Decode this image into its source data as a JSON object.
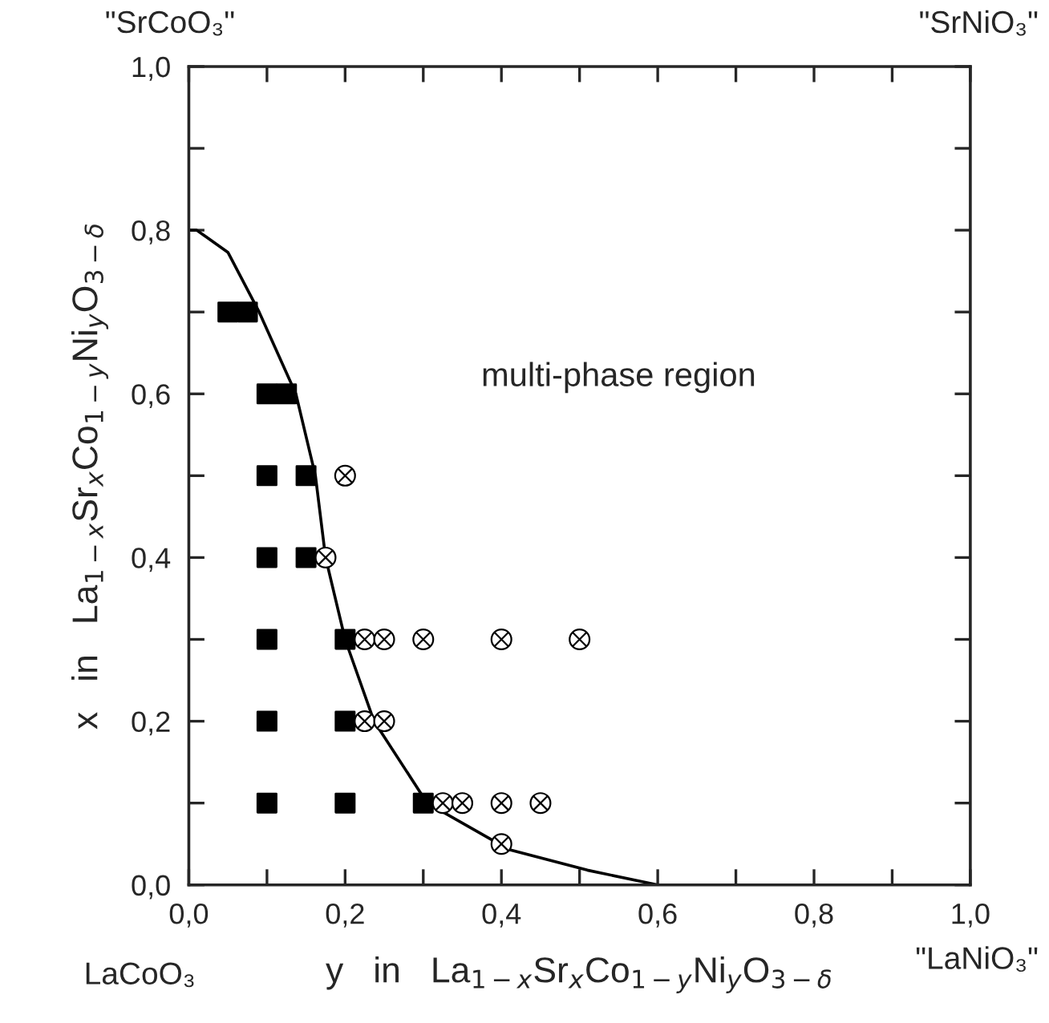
{
  "chart_data": {
    "type": "scatter",
    "xlabel": "y   in   La$_{1−x}$Sr$_{x}$Co$_{1−y}$Ni$_{y}$O$_{3−δ}$",
    "ylabel": "x   in   La$_{1−x}$Sr$_{x}$Co$_{1−y}$Ni$_{y}$O$_{3−δ}$",
    "annotations": [
      "\"SrCoO₃\"",
      "\"SrNiO₃\"",
      "LaCoO₃",
      "\"LaNiO₃\"",
      "multi-phase region"
    ],
    "xlim": [
      0,
      1
    ],
    "ylim": [
      0,
      1
    ],
    "xticks": [
      {
        "value": 0,
        "label": "0,0"
      },
      {
        "value": 0.1,
        "label": null
      },
      {
        "value": 0.2,
        "label": "0,2"
      },
      {
        "value": 0.3,
        "label": null
      },
      {
        "value": 0.4,
        "label": "0,4"
      },
      {
        "value": 0.5,
        "label": null
      },
      {
        "value": 0.6,
        "label": "0,6"
      },
      {
        "value": 0.7,
        "label": null
      },
      {
        "value": 0.8,
        "label": "0,8"
      },
      {
        "value": 0.9,
        "label": null
      },
      {
        "value": 1,
        "label": "1,0"
      }
    ],
    "yticks": [
      {
        "value": 0,
        "label": "0,0"
      },
      {
        "value": 0.1,
        "label": null
      },
      {
        "value": 0.2,
        "label": "0,2"
      },
      {
        "value": 0.3,
        "label": null
      },
      {
        "value": 0.4,
        "label": "0,4"
      },
      {
        "value": 0.5,
        "label": null
      },
      {
        "value": 0.6,
        "label": "0,6"
      },
      {
        "value": 0.7,
        "label": null
      },
      {
        "value": 0.8,
        "label": "0,8"
      },
      {
        "value": 0.9,
        "label": null
      },
      {
        "value": 1,
        "label": "1,0"
      }
    ],
    "grid": false,
    "legend": false,
    "series": [
      {
        "marker": "square",
        "color": "#000000",
        "x": [
          0.05,
          0.075,
          0.1,
          0.125,
          0.1,
          0.15,
          0.1,
          0.15,
          0.1,
          0.2,
          0.1,
          0.2,
          0.1,
          0.2,
          0.3
        ],
        "values": [
          0.7,
          0.7,
          0.6,
          0.6,
          0.5,
          0.5,
          0.4,
          0.4,
          0.3,
          0.3,
          0.2,
          0.2,
          0.1,
          0.1,
          0.1
        ]
      },
      {
        "marker": "cross",
        "color": "#000000",
        "x": [
          0.2,
          0.175,
          0.225,
          0.25,
          0.3,
          0.4,
          0.5,
          0.225,
          0.25,
          0.325,
          0.35,
          0.4,
          0.45,
          0.4
        ],
        "values": [
          0.5,
          0.4,
          0.3,
          0.3,
          0.3,
          0.3,
          0.3,
          0.2,
          0.2,
          0.1,
          0.1,
          0.1,
          0.1,
          0.05
        ]
      },
      {
        "type": "line",
        "line_style": "solid",
        "marker": "none",
        "color": "#000000",
        "x": [
          0,
          0.01,
          0.05,
          0.09,
          0.137,
          0.162,
          0.175,
          0.2,
          0.237,
          0.305,
          0.41,
          0.51,
          0.6
        ],
        "values": [
          0.8,
          0.8,
          0.773,
          0.7,
          0.6,
          0.5,
          0.4,
          0.3,
          0.2,
          0.1,
          0.043,
          0.018,
          0
        ]
      }
    ]
  }
}
